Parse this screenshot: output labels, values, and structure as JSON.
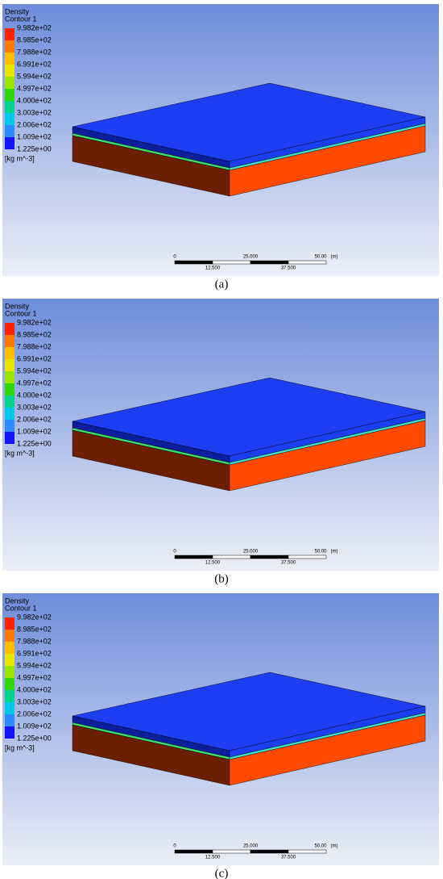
{
  "panels": [
    {
      "legend": {
        "title": "Density",
        "subtitle": "Contour 1",
        "labels": [
          "9.982e+02",
          "8.985e+02",
          "7.988e+02",
          "6.991e+02",
          "5.994e+02",
          "4.997e+02",
          "4.000e+02",
          "3.003e+02",
          "2.006e+02",
          "1.009e+02",
          "1.225e+00"
        ],
        "unit": "[kg m^-3]"
      },
      "scale": {
        "top": [
          "0",
          "25.000",
          "50.00"
        ],
        "unit": "(m)",
        "bottom": [
          "12.500",
          "37.500"
        ]
      },
      "caption": "(a)"
    },
    {
      "legend": {
        "title": "Density",
        "subtitle": "Contour 1",
        "labels": [
          "9.982e+02",
          "8.985e+02",
          "7.988e+02",
          "6.991e+02",
          "5.994e+02",
          "4.997e+02",
          "4.000e+02",
          "3.003e+02",
          "2.006e+02",
          "1.009e+02",
          "1.225e+00"
        ],
        "unit": "[kg m^-3]"
      },
      "scale": {
        "top": [
          "0",
          "25.000",
          "50.00"
        ],
        "unit": "(m)",
        "bottom": [
          "12.500",
          "37.500"
        ]
      },
      "caption": "(b)"
    },
    {
      "legend": {
        "title": "Density",
        "subtitle": "Contour 1",
        "labels": [
          "9.982e+02",
          "8.985e+02",
          "7.988e+02",
          "6.991e+02",
          "5.994e+02",
          "4.997e+02",
          "4.000e+02",
          "3.003e+02",
          "2.006e+02",
          "1.009e+02",
          "1.225e+00"
        ],
        "unit": "[kg m^-3]"
      },
      "scale": {
        "top": [
          "0",
          "25.000",
          "50.00"
        ],
        "unit": "(m)",
        "bottom": [
          "12.500",
          "37.500"
        ]
      },
      "caption": "(c)"
    }
  ]
}
